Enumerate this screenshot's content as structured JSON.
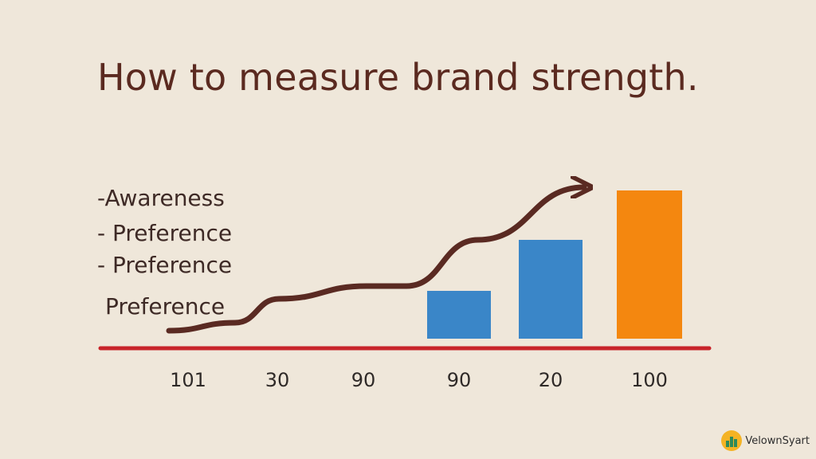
{
  "chart_data": {
    "type": "bar",
    "title": "How to measure brand strength.",
    "legend_lines": [
      "-Awareness",
      "- Preference",
      "-  Preference",
      "Preference"
    ],
    "categories": [
      "101",
      "30",
      "90",
      "90",
      "20",
      "100"
    ],
    "bars": [
      {
        "category_index": 3,
        "value": 30,
        "color": "#3a86c8"
      },
      {
        "category_index": 4,
        "value": 62,
        "color": "#3a86c8"
      },
      {
        "category_index": 5,
        "value": 93,
        "color": "#f4870f"
      }
    ],
    "trend_line": {
      "values": [
        5,
        10,
        25,
        33,
        33,
        62,
        95
      ],
      "color": "#5a2a22",
      "arrow": true
    },
    "baseline_color": "#c8242a",
    "ylim": [
      0,
      100
    ],
    "grid": false,
    "legend_position": "left"
  },
  "watermark": {
    "text": "VelownSyart",
    "icon": "logo-icon",
    "colors": {
      "circle": "#f4b324",
      "bars": "#2d8a5a"
    }
  }
}
